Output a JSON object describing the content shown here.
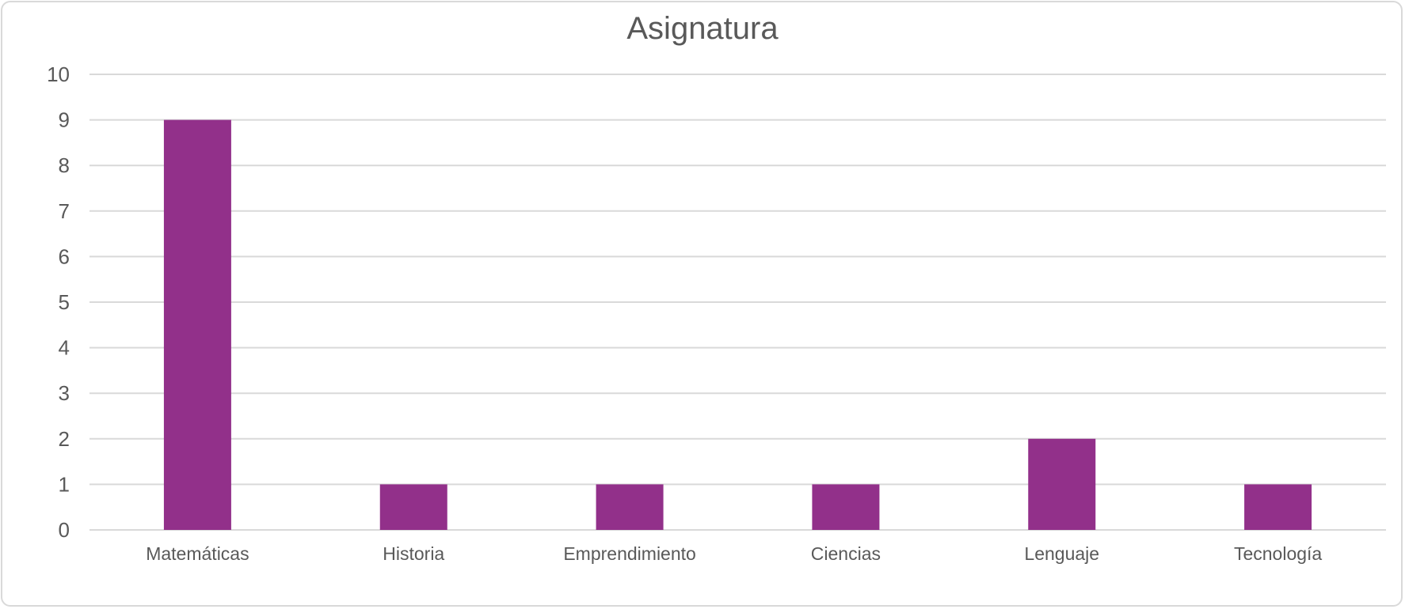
{
  "chart_data": {
    "type": "bar",
    "title": "Asignatura",
    "xlabel": "",
    "ylabel": "",
    "categories": [
      "Matemáticas",
      "Historia",
      "Emprendimiento",
      "Ciencias",
      "Lenguaje",
      "Tecnología"
    ],
    "values": [
      9,
      1,
      1,
      1,
      2,
      1
    ],
    "ylim": [
      0,
      10
    ],
    "yticks": [
      "0",
      "1",
      "2",
      "3",
      "4",
      "5",
      "6",
      "7",
      "8",
      "9",
      "10"
    ],
    "grid": true,
    "legend": "none",
    "bar_color": "#92308A",
    "grid_color": "#d9d9d9",
    "text_color": "#595959"
  }
}
